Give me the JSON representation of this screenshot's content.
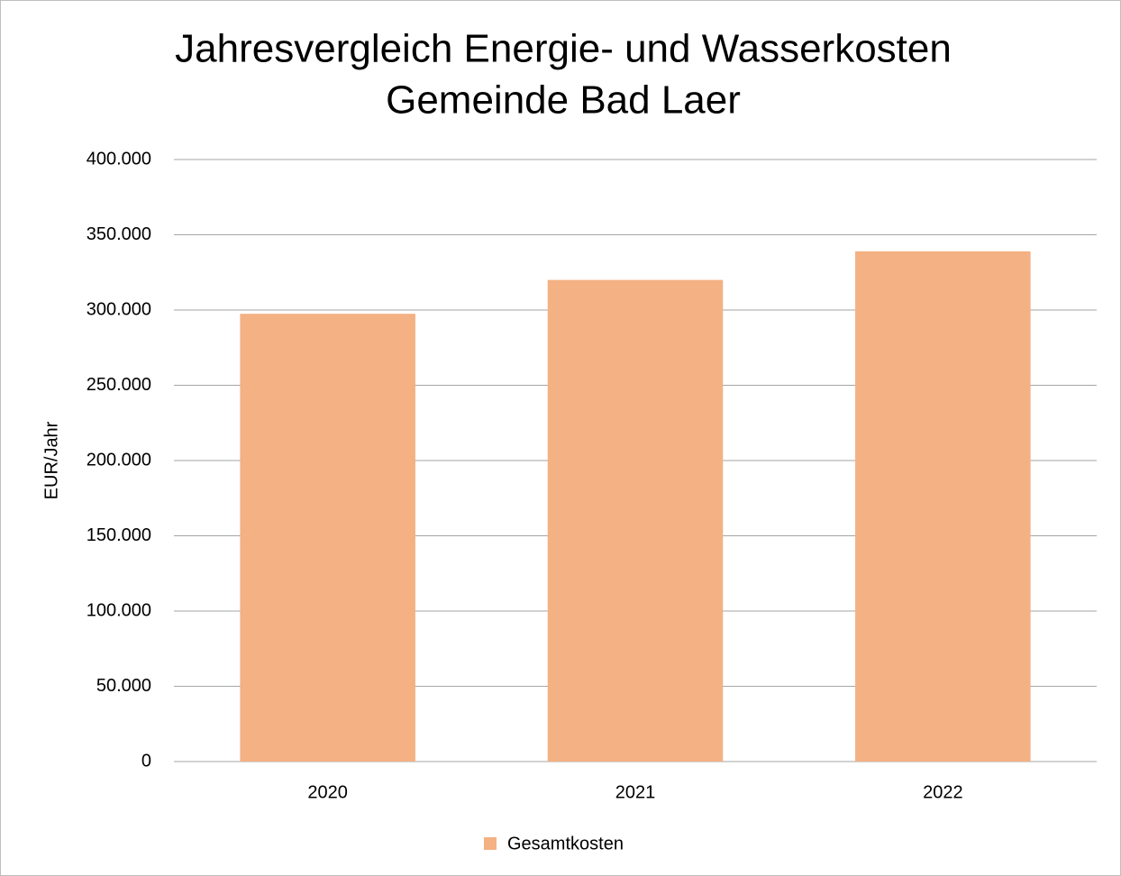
{
  "chart_data": {
    "type": "bar",
    "title": [
      "Jahresvergleich Energie- und Wasserkosten",
      "Gemeinde Bad Laer"
    ],
    "y_label": "EUR/Jahr",
    "categories": [
      "2020",
      "2021",
      "2022"
    ],
    "series": [
      {
        "name": "Gesamtkosten",
        "color": "#f4b183",
        "values": [
          297500,
          320000,
          339000
        ]
      }
    ],
    "ylim": [
      0,
      400000
    ],
    "yticks": [
      0,
      {
        "value": 50000,
        "label": "50.000"
      },
      {
        "value": 100000,
        "label": "100.000"
      },
      {
        "value": 150000,
        "label": "150.000"
      },
      {
        "value": 200000,
        "label": "200.000"
      },
      {
        "value": 250000,
        "label": "250.000"
      },
      {
        "value": 300000,
        "label": "300.000"
      },
      {
        "value": 350000,
        "label": "350.000"
      },
      {
        "value": 400000,
        "label": "400.000"
      }
    ],
    "grid": true,
    "legend": "bottom"
  }
}
